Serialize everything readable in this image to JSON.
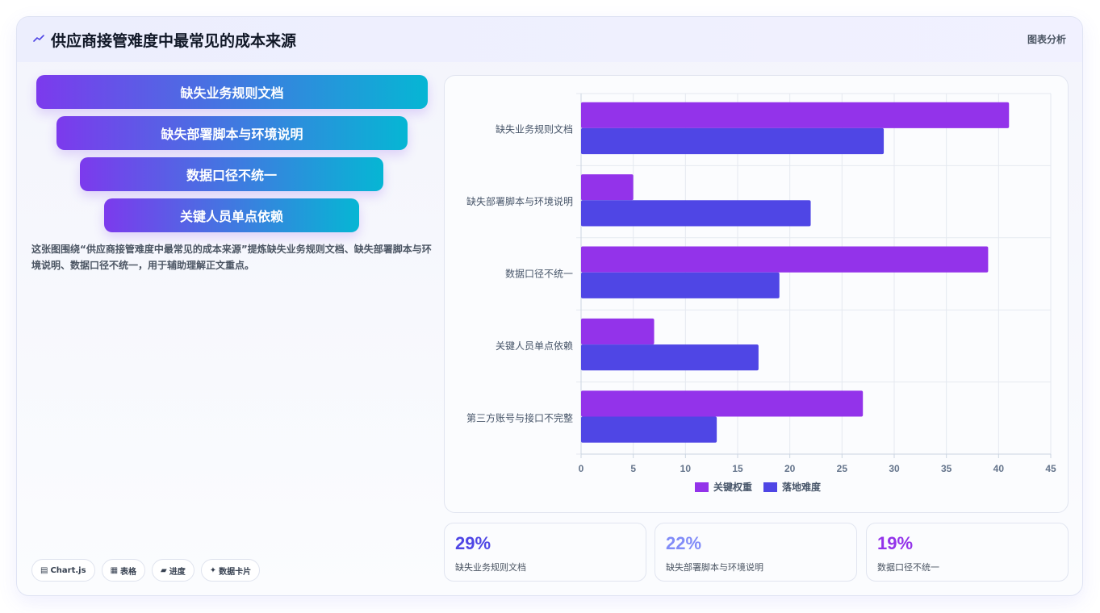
{
  "header": {
    "title": "供应商接管难度中最常见的成本来源",
    "tag": "图表分析",
    "icon": "trend-line-icon"
  },
  "funnel": [
    {
      "label": "缺失业务规则文档"
    },
    {
      "label": "缺失部署脚本与环境说明"
    },
    {
      "label": "数据口径不统一"
    },
    {
      "label": "关键人员单点依赖"
    }
  ],
  "description": "这张图围绕“供应商接管难度中最常见的成本来源”提炼缺失业务规则文档、缺失部署脚本与环境说明、数据口径不统一，用于辅助理解正文重点。",
  "chips": [
    {
      "icon": "chart-icon",
      "glyph": "▤",
      "label": "Chart.js"
    },
    {
      "icon": "table-icon",
      "glyph": "▦",
      "label": "表格"
    },
    {
      "icon": "progress-icon",
      "glyph": "▰",
      "label": "进度"
    },
    {
      "icon": "sparkle-icon",
      "glyph": "✦",
      "label": "数据卡片"
    }
  ],
  "stats": [
    {
      "value": "29%",
      "label": "缺失业务规则文档",
      "color": "#4f46e5"
    },
    {
      "value": "22%",
      "label": "缺失部署脚本与环境说明",
      "color": "#818cf8"
    },
    {
      "value": "19%",
      "label": "数据口径不统一",
      "color": "#9333ea"
    }
  ],
  "chart_data": {
    "type": "bar",
    "orientation": "horizontal",
    "categories": [
      "缺失业务规则文档",
      "缺失部署脚本与环境说明",
      "数据口径不统一",
      "关键人员单点依赖",
      "第三方账号与接口不完整"
    ],
    "series": [
      {
        "name": "关键权重",
        "values": [
          41,
          5,
          39,
          7,
          27
        ],
        "color": "#9333ea"
      },
      {
        "name": "落地难度",
        "values": [
          29,
          22,
          19,
          17,
          13
        ],
        "color": "#4f46e5"
      }
    ],
    "xlim": [
      0,
      45
    ],
    "xticks": [
      0,
      5,
      10,
      15,
      20,
      25,
      30,
      35,
      40,
      45
    ],
    "grid": true,
    "legend": "bottom"
  }
}
